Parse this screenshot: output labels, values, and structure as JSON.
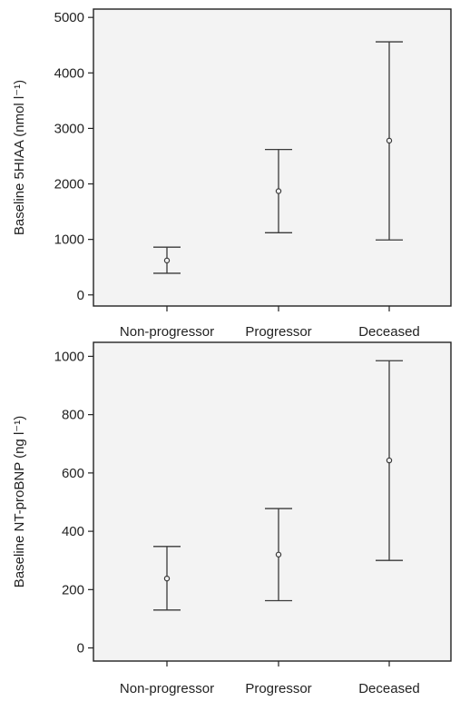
{
  "chart_data": [
    {
      "type": "scatter",
      "subtype": "mean-with-error-bars",
      "title": "",
      "xlabel": "",
      "ylabel": "Baseline 5HIAA (nmol l⁻¹)",
      "categories": [
        "Non-progressor",
        "Progressor",
        "Deceased"
      ],
      "yticks": [
        0,
        1000,
        2000,
        3000,
        4000,
        5000
      ],
      "ylim": [
        -200,
        5150
      ],
      "points": [
        {
          "category": "Non-progressor",
          "mean": 620,
          "lower": 390,
          "upper": 860
        },
        {
          "category": "Progressor",
          "mean": 1870,
          "lower": 1120,
          "upper": 2620
        },
        {
          "category": "Deceased",
          "mean": 2780,
          "lower": 990,
          "upper": 4560
        }
      ],
      "grid": false,
      "background": "#f3f3f3"
    },
    {
      "type": "scatter",
      "subtype": "mean-with-error-bars",
      "title": "",
      "xlabel": "",
      "ylabel": "Baseline NT-proBNP (ng l⁻¹)",
      "categories": [
        "Non-progressor",
        "Progressor",
        "Deceased"
      ],
      "yticks": [
        0,
        200,
        400,
        600,
        800,
        1000
      ],
      "ylim": [
        -45,
        1048
      ],
      "points": [
        {
          "category": "Non-progressor",
          "mean": 238,
          "lower": 130,
          "upper": 348
        },
        {
          "category": "Progressor",
          "mean": 320,
          "lower": 162,
          "upper": 478
        },
        {
          "category": "Deceased",
          "mean": 643,
          "lower": 300,
          "upper": 985
        }
      ],
      "grid": false,
      "background": "#f3f3f3"
    }
  ]
}
